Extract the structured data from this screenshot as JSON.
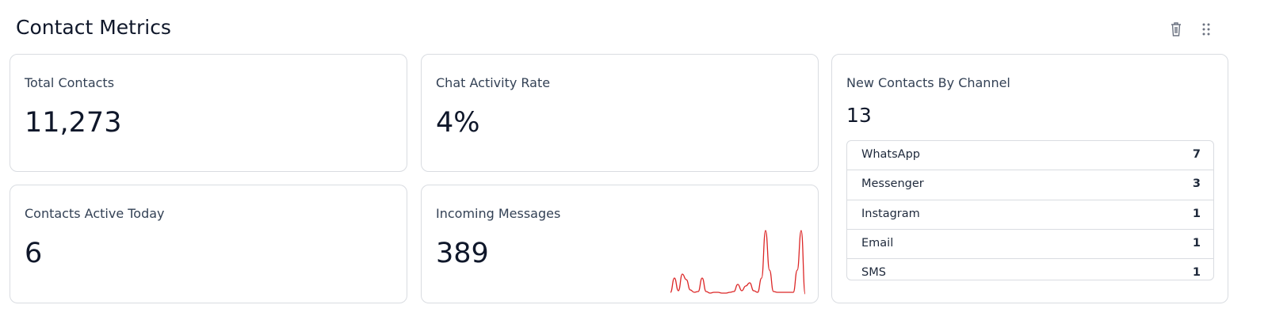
{
  "header": {
    "title": "Contact Metrics"
  },
  "cards": [
    {
      "label": "Total Contacts",
      "value": "11,273"
    },
    {
      "label": "Chat Activity Rate",
      "value": "4%"
    },
    {
      "label": "Contacts Active Today",
      "value": "6"
    },
    {
      "label": "Incoming Messages",
      "value": "389"
    }
  ],
  "channels": {
    "label": "New Contacts By Channel",
    "total": "13",
    "rows": [
      [
        "WhatsApp",
        "7"
      ],
      [
        "Messenger",
        "3"
      ],
      [
        "Instagram",
        "1"
      ],
      [
        "Email",
        "1"
      ],
      [
        "SMS",
        "1"
      ]
    ]
  },
  "sparkline": {
    "type": "line",
    "color": "#dc2626",
    "values": [
      2,
      20,
      4,
      25,
      18,
      5,
      2,
      3,
      20,
      3,
      1,
      2,
      2,
      1,
      1,
      2,
      3,
      12,
      4,
      10,
      14,
      4,
      2,
      20,
      80,
      30,
      3,
      2,
      2,
      2,
      2,
      2,
      30,
      80,
      0
    ]
  }
}
